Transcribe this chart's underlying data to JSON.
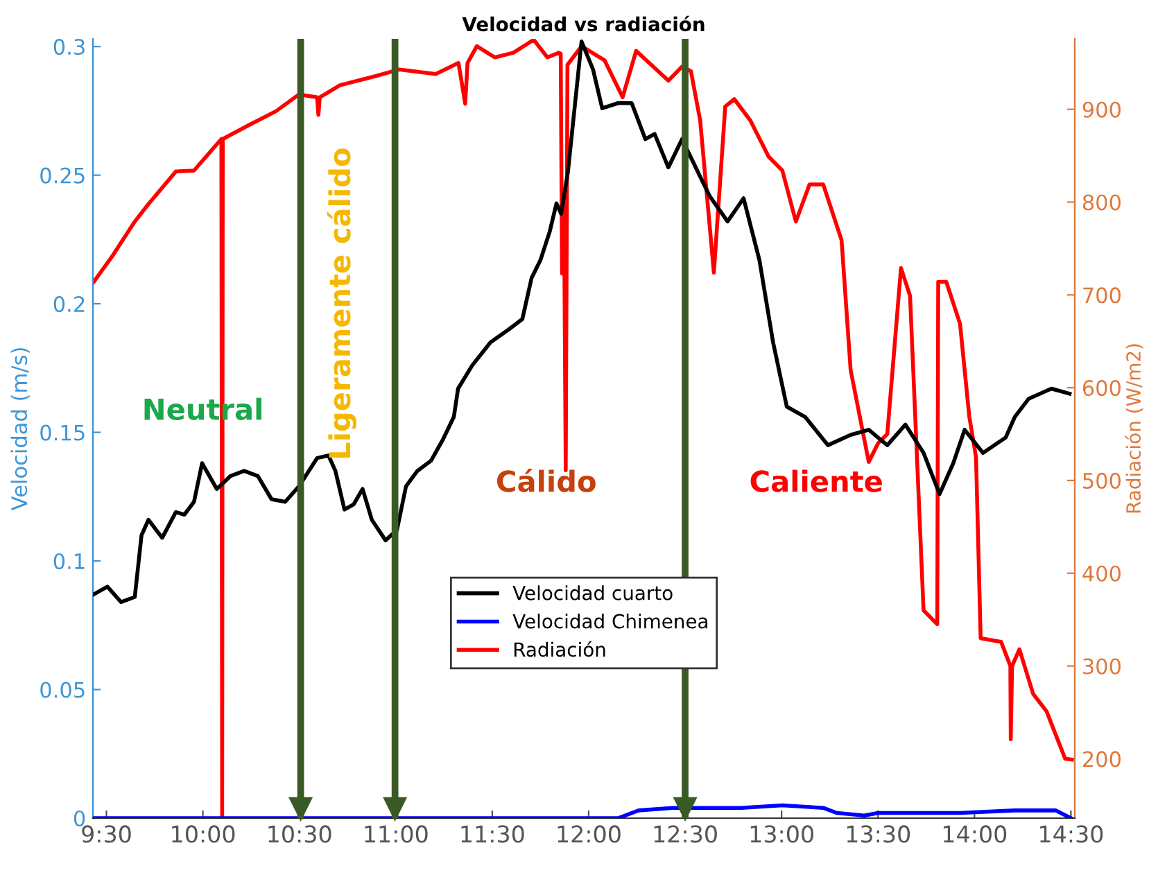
{
  "chart_data": {
    "type": "line",
    "title": "Velocidad vs radiación",
    "ylabel": "Velocidad (m/s)",
    "y2label": "Radiación (W/m2)",
    "xlim": [
      9.43,
      14.52
    ],
    "ylim": [
      0,
      0.303
    ],
    "y2lim": [
      136,
      976
    ],
    "xticks": [
      {
        "value": 9.5,
        "label": "9:30"
      },
      {
        "value": 10,
        "label": "10:00"
      },
      {
        "value": 10.5,
        "label": "10:30"
      },
      {
        "value": 11,
        "label": "11:00"
      },
      {
        "value": 11.5,
        "label": "11:30"
      },
      {
        "value": 12,
        "label": "12:00"
      },
      {
        "value": 12.5,
        "label": "12:30"
      },
      {
        "value": 13,
        "label": "13:00"
      },
      {
        "value": 13.5,
        "label": "13:30"
      },
      {
        "value": 14,
        "label": "14:00"
      },
      {
        "value": 14.5,
        "label": "14:30"
      }
    ],
    "yticks": [
      0,
      0.05,
      0.1,
      0.15,
      0.2,
      0.25,
      0.3
    ],
    "y2ticks": [
      200,
      300,
      400,
      500,
      600,
      700,
      800,
      900
    ],
    "legend": "lower center",
    "grid": false,
    "series": [
      {
        "name": "Velocidad cuarto",
        "color": "#000000",
        "x": [
          9.434,
          9.505,
          9.576,
          9.647,
          9.682,
          9.718,
          9.789,
          9.86,
          9.904,
          9.954,
          9.996,
          10.072,
          10.143,
          10.214,
          10.285,
          10.356,
          10.427,
          10.498,
          10.592,
          10.651,
          10.687,
          10.734,
          10.782,
          10.828,
          10.876,
          10.947,
          11.006,
          11.053,
          11.112,
          11.183,
          11.243,
          11.301,
          11.323,
          11.396,
          11.491,
          11.585,
          11.656,
          11.704,
          11.75,
          11.798,
          11.833,
          11.857,
          11.892,
          11.963,
          12.023,
          12.07,
          12.152,
          12.223,
          12.294,
          12.342,
          12.413,
          12.484,
          12.555,
          12.626,
          12.72,
          12.803,
          12.885,
          12.956,
          13.027,
          13.122,
          13.24,
          13.358,
          13.452,
          13.548,
          13.642,
          13.736,
          13.819,
          13.89,
          13.949,
          14.044,
          14.162,
          14.209,
          14.28,
          14.399,
          14.493
        ],
        "values": [
          0.087,
          0.09,
          0.084,
          0.086,
          0.11,
          0.116,
          0.109,
          0.119,
          0.118,
          0.123,
          0.138,
          0.128,
          0.133,
          0.135,
          0.133,
          0.124,
          0.123,
          0.129,
          0.14,
          0.141,
          0.135,
          0.12,
          0.122,
          0.128,
          0.116,
          0.108,
          0.112,
          0.129,
          0.135,
          0.139,
          0.147,
          0.156,
          0.167,
          0.176,
          0.185,
          0.19,
          0.194,
          0.21,
          0.217,
          0.228,
          0.239,
          0.235,
          0.251,
          0.302,
          0.291,
          0.276,
          0.278,
          0.278,
          0.264,
          0.266,
          0.253,
          0.264,
          0.253,
          0.242,
          0.232,
          0.241,
          0.217,
          0.185,
          0.16,
          0.156,
          0.145,
          0.149,
          0.151,
          0.145,
          0.153,
          0.142,
          0.126,
          0.138,
          0.151,
          0.142,
          0.148,
          0.156,
          0.163,
          0.167,
          0.165
        ]
      },
      {
        "name": "Velocidad Chimenea",
        "color": "#0000ff",
        "x": [
          9.43,
          12.152,
          12.259,
          12.436,
          12.791,
          13.004,
          13.216,
          13.287,
          13.429,
          13.5,
          13.925,
          14.209,
          14.422,
          14.5
        ],
        "values": [
          0,
          0,
          0.003,
          0.004,
          0.004,
          0.005,
          0.004,
          0.002,
          0.001,
          0.002,
          0.002,
          0.003,
          0.003,
          0
        ]
      },
      {
        "name": "Radiación",
        "color": "#ff0000",
        "axis": "y2",
        "x": [
          9.434,
          9.528,
          9.647,
          9.718,
          9.86,
          9.954,
          10.096,
          10.1,
          10.103,
          10.238,
          10.379,
          10.498,
          10.592,
          10.599,
          10.606,
          10.711,
          10.899,
          11.018,
          11.207,
          11.325,
          11.36,
          11.372,
          11.42,
          11.514,
          11.609,
          11.715,
          11.786,
          11.845,
          11.855,
          11.862,
          11.872,
          11.881,
          11.89,
          11.963,
          12.082,
          12.176,
          12.246,
          12.413,
          12.484,
          12.53,
          12.578,
          12.649,
          12.708,
          12.755,
          12.838,
          12.933,
          13.004,
          13.074,
          13.145,
          13.216,
          13.311,
          13.358,
          13.429,
          13.452,
          13.5,
          13.548,
          13.619,
          13.666,
          13.736,
          13.807,
          13.812,
          13.854,
          13.925,
          13.973,
          14.008,
          14.032,
          14.138,
          14.186,
          14.188,
          14.195,
          14.233,
          14.304,
          14.374,
          14.47,
          14.505
        ],
        "values": [
          714,
          741,
          779,
          798,
          833,
          834,
          868,
          136,
          868,
          883,
          898,
          916,
          913,
          894,
          913,
          926,
          936,
          943,
          938,
          950,
          906,
          950,
          968,
          956,
          961,
          975,
          956,
          961,
          960,
          723,
          800,
          511,
          948,
          968,
          953,
          913,
          963,
          931,
          946,
          941,
          888,
          724,
          903,
          911,
          888,
          849,
          834,
          779,
          819,
          819,
          759,
          619,
          544,
          520,
          540,
          550,
          729,
          699,
          360,
          345,
          714,
          714,
          669,
          569,
          525,
          330,
          326,
          300,
          221,
          300,
          318,
          270,
          251,
          200,
          199
        ]
      }
    ],
    "ref_lines": [
      {
        "axis": "x",
        "value": 10.507,
        "color": "#3a5a25"
      },
      {
        "axis": "x",
        "value": 10.996,
        "color": "#3a5a25"
      },
      {
        "axis": "x",
        "value": 12.5,
        "color": "#3a5a25"
      }
    ],
    "annotations": [
      "Neutral",
      "Ligeramente cálido",
      "Cálido",
      "Caliente"
    ]
  }
}
